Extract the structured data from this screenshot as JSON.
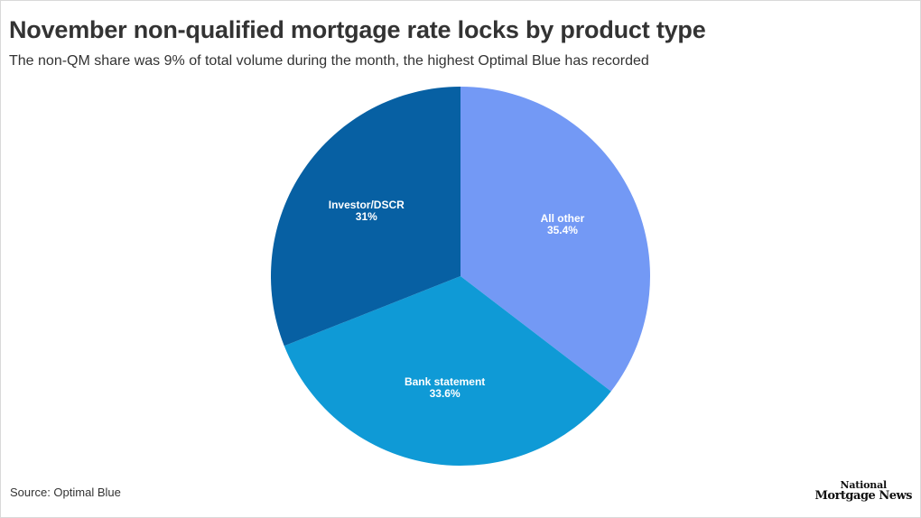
{
  "title": "November non-qualified mortgage rate locks by product type",
  "subtitle": "The non-QM share was 9% of total volume during the month, the highest Optimal Blue has recorded",
  "source": "Source: Optimal Blue",
  "logo": {
    "line1": "National",
    "line2": "Mortgage News"
  },
  "chart_data": {
    "type": "pie",
    "title": "November non-qualified mortgage rate locks by product type",
    "start_angle": "12 o'clock",
    "direction": "clockwise",
    "slices": [
      {
        "label": "All other",
        "value": 35.4,
        "value_label": "35.4%",
        "color": "#7399f5"
      },
      {
        "label": "Bank statement",
        "value": 33.6,
        "value_label": "33.6%",
        "color": "#0f9ad6"
      },
      {
        "label": "Investor/DSCR",
        "value": 31,
        "value_label": "31%",
        "color": "#0760a3"
      }
    ]
  }
}
